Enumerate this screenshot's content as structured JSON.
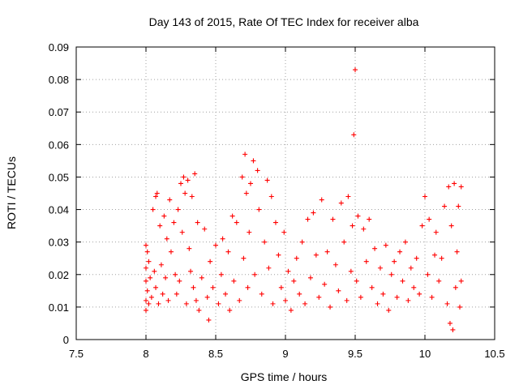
{
  "chart_data": {
    "type": "scatter",
    "title": "Day 143 of 2015, Rate Of TEC Index for receiver alba",
    "xlabel": "GPS time / hours",
    "ylabel": "ROTI / TECUs",
    "xlim": [
      7.5,
      10.5
    ],
    "ylim": [
      0,
      0.09
    ],
    "xticks": [
      7.5,
      8,
      8.5,
      9,
      9.5,
      10,
      10.5
    ],
    "xtick_labels": [
      "7.5",
      "8",
      "8.5",
      "9",
      "9.5",
      "10",
      "10.5"
    ],
    "yticks": [
      0,
      0.01,
      0.02,
      0.03,
      0.04,
      0.05,
      0.06,
      0.07,
      0.08,
      0.09
    ],
    "ytick_labels": [
      "0",
      "0.01",
      "0.02",
      "0.03",
      "0.04",
      "0.05",
      "0.06",
      "0.07",
      "0.08",
      "0.09"
    ],
    "grid": true,
    "marker": "+",
    "color": "#ff0000",
    "series": [
      {
        "points": [
          [
            8.0,
            0.029
          ],
          [
            8.0,
            0.022
          ],
          [
            8.0,
            0.018
          ],
          [
            8.0,
            0.012
          ],
          [
            8.0,
            0.009
          ],
          [
            8.01,
            0.027
          ],
          [
            8.01,
            0.015
          ],
          [
            8.02,
            0.024
          ],
          [
            8.02,
            0.011
          ],
          [
            8.03,
            0.019
          ],
          [
            8.04,
            0.013
          ],
          [
            8.05,
            0.04
          ],
          [
            8.06,
            0.021
          ],
          [
            8.07,
            0.016
          ],
          [
            8.07,
            0.044
          ],
          [
            8.08,
            0.045
          ],
          [
            8.09,
            0.011
          ],
          [
            8.1,
            0.035
          ],
          [
            8.11,
            0.023
          ],
          [
            8.12,
            0.014
          ],
          [
            8.13,
            0.038
          ],
          [
            8.14,
            0.019
          ],
          [
            8.15,
            0.031
          ],
          [
            8.16,
            0.012
          ],
          [
            8.17,
            0.043
          ],
          [
            8.18,
            0.027
          ],
          [
            8.2,
            0.036
          ],
          [
            8.21,
            0.02
          ],
          [
            8.22,
            0.014
          ],
          [
            8.23,
            0.04
          ],
          [
            8.24,
            0.018
          ],
          [
            8.25,
            0.048
          ],
          [
            8.26,
            0.033
          ],
          [
            8.27,
            0.05
          ],
          [
            8.28,
            0.045
          ],
          [
            8.29,
            0.011
          ],
          [
            8.3,
            0.049
          ],
          [
            8.31,
            0.028
          ],
          [
            8.32,
            0.021
          ],
          [
            8.33,
            0.044
          ],
          [
            8.34,
            0.016
          ],
          [
            8.35,
            0.051
          ],
          [
            8.36,
            0.012
          ],
          [
            8.37,
            0.036
          ],
          [
            8.38,
            0.009
          ],
          [
            8.4,
            0.019
          ],
          [
            8.42,
            0.034
          ],
          [
            8.44,
            0.013
          ],
          [
            8.45,
            0.006
          ],
          [
            8.46,
            0.024
          ],
          [
            8.48,
            0.016
          ],
          [
            8.5,
            0.029
          ],
          [
            8.52,
            0.011
          ],
          [
            8.54,
            0.02
          ],
          [
            8.55,
            0.031
          ],
          [
            8.57,
            0.014
          ],
          [
            8.59,
            0.027
          ],
          [
            8.6,
            0.009
          ],
          [
            8.62,
            0.038
          ],
          [
            8.63,
            0.018
          ],
          [
            8.65,
            0.036
          ],
          [
            8.67,
            0.012
          ],
          [
            8.69,
            0.05
          ],
          [
            8.7,
            0.025
          ],
          [
            8.71,
            0.057
          ],
          [
            8.72,
            0.045
          ],
          [
            8.73,
            0.016
          ],
          [
            8.74,
            0.033
          ],
          [
            8.75,
            0.048
          ],
          [
            8.77,
            0.055
          ],
          [
            8.78,
            0.02
          ],
          [
            8.8,
            0.052
          ],
          [
            8.81,
            0.04
          ],
          [
            8.83,
            0.014
          ],
          [
            8.85,
            0.03
          ],
          [
            8.87,
            0.049
          ],
          [
            8.88,
            0.022
          ],
          [
            8.9,
            0.044
          ],
          [
            8.91,
            0.011
          ],
          [
            8.93,
            0.036
          ],
          [
            8.95,
            0.026
          ],
          [
            8.97,
            0.016
          ],
          [
            8.99,
            0.033
          ],
          [
            9.0,
            0.012
          ],
          [
            9.02,
            0.021
          ],
          [
            9.04,
            0.009
          ],
          [
            9.06,
            0.018
          ],
          [
            9.08,
            0.025
          ],
          [
            9.1,
            0.014
          ],
          [
            9.12,
            0.03
          ],
          [
            9.14,
            0.011
          ],
          [
            9.16,
            0.037
          ],
          [
            9.18,
            0.019
          ],
          [
            9.2,
            0.039
          ],
          [
            9.22,
            0.026
          ],
          [
            9.24,
            0.013
          ],
          [
            9.26,
            0.043
          ],
          [
            9.28,
            0.017
          ],
          [
            9.3,
            0.027
          ],
          [
            9.32,
            0.01
          ],
          [
            9.34,
            0.037
          ],
          [
            9.36,
            0.023
          ],
          [
            9.38,
            0.015
          ],
          [
            9.4,
            0.042
          ],
          [
            9.42,
            0.03
          ],
          [
            9.44,
            0.012
          ],
          [
            9.45,
            0.044
          ],
          [
            9.47,
            0.021
          ],
          [
            9.48,
            0.035
          ],
          [
            9.49,
            0.063
          ],
          [
            9.5,
            0.083
          ],
          [
            9.51,
            0.018
          ],
          [
            9.52,
            0.038
          ],
          [
            9.54,
            0.013
          ],
          [
            9.56,
            0.034
          ],
          [
            9.58,
            0.024
          ],
          [
            9.6,
            0.037
          ],
          [
            9.62,
            0.016
          ],
          [
            9.64,
            0.028
          ],
          [
            9.66,
            0.011
          ],
          [
            9.68,
            0.022
          ],
          [
            9.7,
            0.014
          ],
          [
            9.72,
            0.029
          ],
          [
            9.74,
            0.009
          ],
          [
            9.76,
            0.02
          ],
          [
            9.78,
            0.024
          ],
          [
            9.8,
            0.013
          ],
          [
            9.82,
            0.027
          ],
          [
            9.84,
            0.018
          ],
          [
            9.86,
            0.03
          ],
          [
            9.88,
            0.012
          ],
          [
            9.9,
            0.022
          ],
          [
            9.92,
            0.016
          ],
          [
            9.94,
            0.025
          ],
          [
            9.96,
            0.014
          ],
          [
            9.98,
            0.035
          ],
          [
            10.0,
            0.044
          ],
          [
            10.02,
            0.02
          ],
          [
            10.03,
            0.037
          ],
          [
            10.05,
            0.013
          ],
          [
            10.07,
            0.026
          ],
          [
            10.08,
            0.033
          ],
          [
            10.1,
            0.018
          ],
          [
            10.12,
            0.025
          ],
          [
            10.14,
            0.041
          ],
          [
            10.16,
            0.011
          ],
          [
            10.17,
            0.047
          ],
          [
            10.18,
            0.005
          ],
          [
            10.19,
            0.035
          ],
          [
            10.2,
            0.003
          ],
          [
            10.21,
            0.048
          ],
          [
            10.22,
            0.016
          ],
          [
            10.23,
            0.027
          ],
          [
            10.24,
            0.041
          ],
          [
            10.25,
            0.01
          ],
          [
            10.26,
            0.047
          ],
          [
            10.26,
            0.018
          ]
        ]
      }
    ]
  }
}
